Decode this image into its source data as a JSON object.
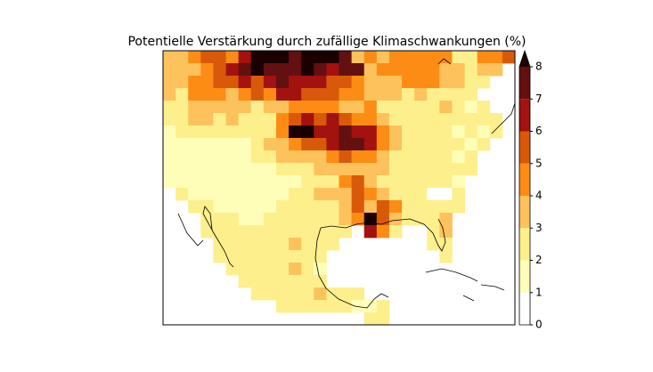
{
  "chart_data": {
    "type": "heatmap",
    "title": "Potentielle Verstärkung durch zufällige Klimaschwankungen (%)",
    "levels": [
      0,
      1,
      2,
      3,
      4,
      5,
      6,
      7,
      8
    ],
    "colors": [
      "#ffffff",
      "#fefeb8",
      "#fdef8c",
      "#fdc25c",
      "#fd8c14",
      "#d9590b",
      "#a3120e",
      "#631010",
      "#1a0000"
    ],
    "extend": "max",
    "values": [
      [
        3.5,
        3.5,
        4.5,
        5.5,
        5.5,
        4.5,
        6.5,
        8.5,
        8.5,
        8.5,
        7.5,
        8.5,
        8.5,
        8.5,
        7.5,
        3.5,
        4.5,
        3.5,
        4.5,
        4.5,
        4.5,
        4.5,
        4.5,
        2.5,
        2.5,
        4.5,
        4.5,
        5.5
      ],
      [
        3.5,
        3.5,
        3.5,
        4.5,
        5.5,
        6.5,
        7.5,
        8.5,
        7.5,
        7.5,
        7.5,
        8.5,
        7.5,
        6.5,
        7.5,
        7.5,
        3.5,
        4.5,
        4.5,
        4.5,
        4.5,
        4.5,
        3.5,
        3.5,
        2.5,
        3.5,
        3.5,
        null
      ],
      [
        3.5,
        3.5,
        4.5,
        4.5,
        5.5,
        5.5,
        6.5,
        5.5,
        6.5,
        7.5,
        6.5,
        6.5,
        6.5,
        5.5,
        5.5,
        4.5,
        3.5,
        3.5,
        3.5,
        4.5,
        4.5,
        4.5,
        3.5,
        3.5,
        2.5,
        2.5,
        null,
        null
      ],
      [
        3.5,
        2.5,
        4.5,
        4.5,
        4.5,
        3.5,
        4.5,
        5.5,
        4.5,
        6.5,
        6.5,
        5.5,
        5.5,
        5.5,
        4.5,
        4.5,
        3.5,
        3.5,
        3.5,
        2.5,
        3.5,
        2.5,
        2.5,
        2.5,
        2.5,
        null,
        null,
        null
      ],
      [
        2.5,
        2.5,
        3.5,
        3.5,
        3.5,
        3.5,
        3.5,
        2.5,
        3.5,
        3.5,
        4.5,
        4.5,
        4.5,
        4.5,
        3.5,
        3.5,
        4.5,
        2.5,
        2.5,
        2.5,
        2.5,
        2.5,
        3.5,
        2.5,
        1.5,
        2.5,
        null,
        null
      ],
      [
        2.5,
        2.5,
        3.5,
        3.5,
        2.5,
        3.5,
        2.5,
        2.5,
        2.5,
        4.5,
        5.5,
        6.5,
        5.5,
        6.5,
        5.5,
        4.5,
        4.5,
        3.5,
        2.5,
        2.5,
        2.5,
        2.5,
        2.5,
        2.5,
        2.5,
        2.5,
        2.5,
        null
      ],
      [
        1.5,
        2.5,
        2.5,
        2.5,
        2.5,
        2.5,
        2.5,
        2.5,
        2.5,
        4.5,
        8.5,
        8.5,
        6.5,
        6.5,
        7.5,
        6.5,
        6.5,
        4.5,
        3.5,
        2.5,
        2.5,
        2.5,
        2.5,
        1.5,
        2.5,
        1.5,
        2.5,
        null
      ],
      [
        1.5,
        1.5,
        1.5,
        1.5,
        1.5,
        1.5,
        1.5,
        2.5,
        3.5,
        3.5,
        4.5,
        5.5,
        5.5,
        6.5,
        7.5,
        7.5,
        6.5,
        4.5,
        3.5,
        2.5,
        2.5,
        2.5,
        2.5,
        2.5,
        1.5,
        2.5,
        null,
        null
      ],
      [
        1.5,
        1.5,
        1.5,
        1.5,
        1.5,
        1.5,
        1.5,
        2.5,
        2.5,
        3.5,
        3.5,
        3.5,
        3.5,
        4.5,
        5.5,
        4.5,
        4.5,
        3.5,
        2.5,
        2.5,
        2.5,
        2.5,
        2.5,
        1.5,
        2.5,
        null,
        null,
        null
      ],
      [
        1.5,
        1.5,
        1.5,
        1.5,
        1.5,
        1.5,
        1.5,
        1.5,
        1.5,
        2.5,
        2.5,
        2.5,
        3.5,
        3.5,
        3.5,
        3.5,
        3.5,
        3.5,
        2.5,
        2.5,
        2.5,
        2.5,
        2.5,
        2.5,
        2.5,
        null,
        null,
        null
      ],
      [
        1.5,
        1.5,
        1.5,
        1.5,
        1.5,
        1.5,
        1.5,
        1.5,
        1.5,
        1.5,
        1.5,
        2.5,
        2.5,
        2.5,
        4.5,
        5.5,
        3.5,
        2.5,
        2.5,
        2.5,
        2.5,
        2.5,
        2.5,
        1.5,
        null,
        null,
        null,
        null
      ],
      [
        null,
        2.5,
        1.5,
        1.5,
        1.5,
        1.5,
        1.5,
        1.5,
        1.5,
        1.5,
        2.5,
        2.5,
        3.5,
        3.5,
        3.5,
        5.5,
        4.5,
        3.5,
        2.5,
        2.5,
        2.5,
        0.5,
        0.5,
        2.5,
        null,
        null,
        null,
        null
      ],
      [
        null,
        null,
        2.5,
        2.5,
        1.5,
        1.5,
        1.5,
        1.5,
        1.5,
        2.5,
        2.5,
        2.5,
        2.5,
        2.5,
        3.5,
        5.5,
        3.5,
        5.5,
        4.5,
        2.5,
        2.5,
        2.5,
        2.5,
        2.5,
        null,
        null,
        null,
        null
      ],
      [
        null,
        null,
        null,
        2.5,
        2.5,
        2.5,
        1.5,
        1.5,
        2.5,
        2.5,
        2.5,
        2.5,
        2.5,
        2.5,
        3.5,
        4.5,
        8.5,
        5.5,
        3.5,
        2.5,
        2.5,
        2.5,
        3.5,
        null,
        null,
        null,
        null,
        null
      ],
      [
        null,
        null,
        null,
        2.5,
        2.5,
        2.5,
        2.5,
        2.5,
        2.5,
        2.5,
        2.5,
        2.5,
        2.5,
        2.5,
        2.5,
        null,
        6.5,
        4.5,
        2.5,
        null,
        null,
        2.5,
        3.5,
        null,
        null,
        null,
        null,
        null
      ],
      [
        null,
        null,
        null,
        null,
        2.5,
        2.5,
        2.5,
        2.5,
        2.5,
        2.5,
        3.5,
        2.5,
        2.5,
        2.5,
        null,
        null,
        null,
        null,
        null,
        null,
        null,
        2.5,
        2.5,
        null,
        null,
        null,
        null,
        null
      ],
      [
        null,
        null,
        null,
        null,
        2.5,
        2.5,
        2.5,
        2.5,
        2.5,
        2.5,
        2.5,
        2.5,
        2.5,
        null,
        null,
        null,
        null,
        null,
        null,
        null,
        null,
        null,
        2.5,
        null,
        null,
        null,
        null,
        null
      ],
      [
        null,
        null,
        null,
        null,
        null,
        2.5,
        2.5,
        2.5,
        2.5,
        2.5,
        3.5,
        2.5,
        1.5,
        null,
        null,
        null,
        null,
        null,
        null,
        null,
        null,
        null,
        null,
        null,
        null,
        null,
        null,
        null
      ],
      [
        null,
        null,
        null,
        null,
        null,
        null,
        2.5,
        2.5,
        2.5,
        2.5,
        2.5,
        2.5,
        2.5,
        null,
        null,
        null,
        null,
        null,
        null,
        null,
        null,
        null,
        null,
        null,
        null,
        null,
        null,
        null
      ],
      [
        null,
        null,
        null,
        null,
        null,
        null,
        null,
        2.5,
        2.5,
        2.5,
        2.5,
        2.5,
        3.5,
        2.5,
        2.5,
        2.5,
        null,
        null,
        null,
        null,
        null,
        null,
        null,
        null,
        null,
        null,
        null,
        null
      ],
      [
        null,
        null,
        null,
        null,
        null,
        null,
        null,
        null,
        null,
        2.5,
        2.5,
        2.5,
        2.5,
        2.5,
        2.5,
        1.5,
        1.5,
        2.5,
        null,
        null,
        null,
        null,
        null,
        null,
        null,
        null,
        null,
        null
      ],
      [
        null,
        null,
        null,
        null,
        null,
        null,
        null,
        null,
        null,
        null,
        null,
        null,
        null,
        null,
        null,
        null,
        2.5,
        2.5,
        null,
        null,
        null,
        null,
        null,
        null,
        null,
        null,
        null,
        null
      ]
    ]
  }
}
